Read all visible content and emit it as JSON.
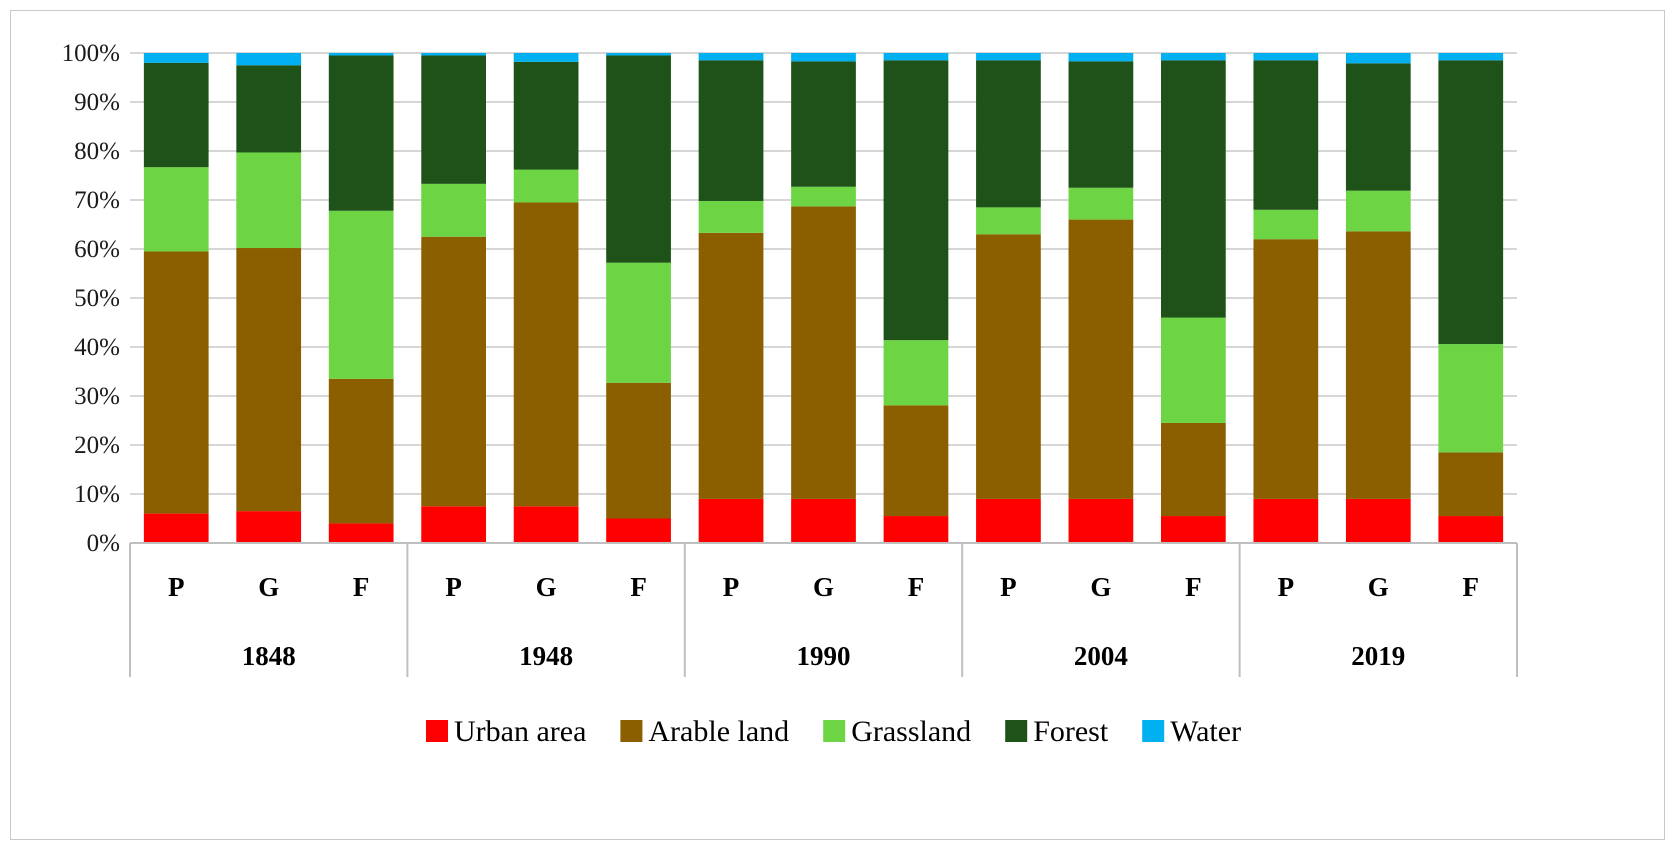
{
  "chart_data": {
    "type": "bar",
    "stacked": true,
    "percent": true,
    "groups": [
      "1848",
      "1948",
      "1990",
      "2004",
      "2019"
    ],
    "subcategories": [
      "P",
      "G",
      "F"
    ],
    "ylim": [
      0,
      100
    ],
    "yticks": [
      "0%",
      "10%",
      "20%",
      "30%",
      "40%",
      "50%",
      "60%",
      "70%",
      "80%",
      "90%",
      "100%"
    ],
    "legend_position": "bottom",
    "grid": true,
    "series": [
      {
        "name": "Urban area",
        "color": "#ff0000",
        "values": [
          6,
          6.5,
          4,
          7.5,
          7.5,
          5,
          9,
          9,
          5.5,
          9,
          9,
          5.5,
          9,
          9,
          5.5
        ]
      },
      {
        "name": "Arable land",
        "color": "#8b5e00",
        "values": [
          53.5,
          53.7,
          29.5,
          55,
          62,
          27.7,
          54.3,
          59.7,
          22.6,
          54,
          57,
          19,
          53,
          54.6,
          13
        ]
      },
      {
        "name": "Grassland",
        "color": "#6dd444",
        "values": [
          17.2,
          19.5,
          34.3,
          10.8,
          6.7,
          24.5,
          6.5,
          4,
          13.3,
          5.5,
          6.5,
          21.5,
          6,
          8.3,
          22.1
        ]
      },
      {
        "name": "Forest",
        "color": "#1e5218",
        "values": [
          21.3,
          17.8,
          31.7,
          26.2,
          22,
          42.3,
          28.7,
          25.6,
          57.1,
          30,
          25.8,
          52.5,
          30.5,
          26,
          57.9
        ]
      },
      {
        "name": "Water",
        "color": "#00b0f0",
        "values": [
          2,
          2.5,
          0.5,
          0.5,
          1.8,
          0.5,
          1.5,
          1.7,
          1.5,
          1.5,
          1.7,
          1.5,
          1.5,
          2.1,
          1.5
        ]
      }
    ]
  }
}
